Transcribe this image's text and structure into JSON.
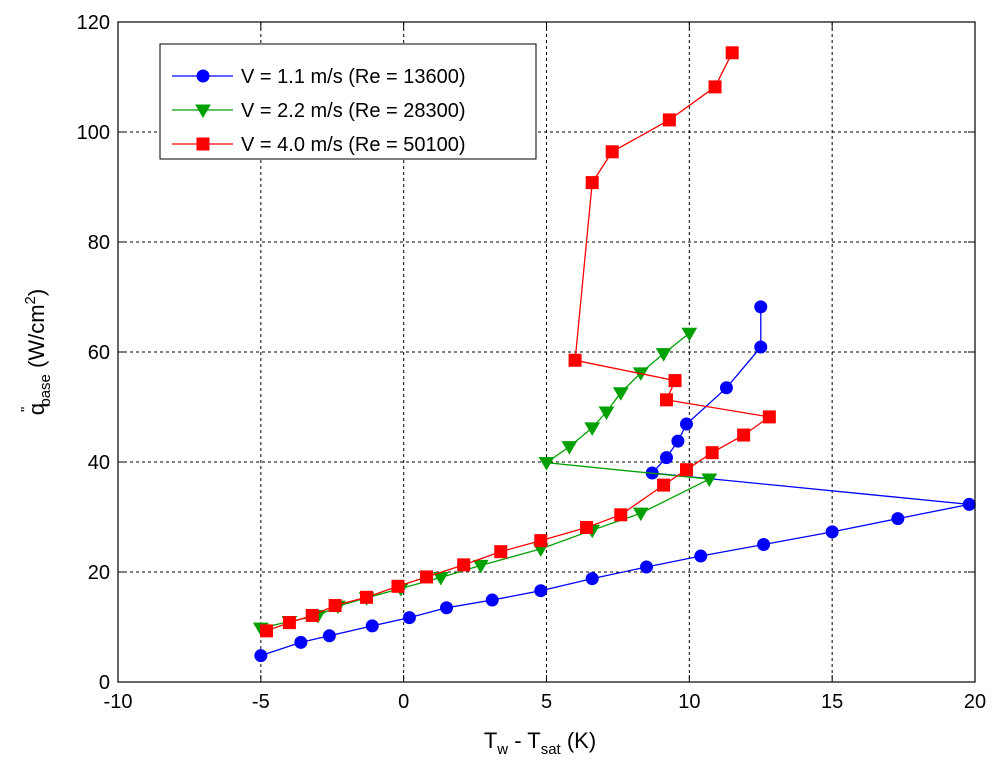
{
  "chart_data": {
    "type": "line",
    "xlabel": {
      "main": "T",
      "sub1": "w",
      "mid": " - T",
      "sub2": "sat",
      "unit": " (K)"
    },
    "ylabel": {
      "prefix": "q",
      "mark": "\"",
      "sub": "base",
      "unit_open": " (W/cm",
      "sup": "2",
      "unit_close": ")"
    },
    "xlim": [
      -10,
      20
    ],
    "ylim": [
      0,
      120
    ],
    "x_ticks": [
      -10,
      -5,
      0,
      5,
      10,
      15,
      20
    ],
    "y_ticks": [
      0,
      20,
      40,
      60,
      80,
      100,
      120
    ],
    "grid": true,
    "legend_position": "top-left",
    "series": [
      {
        "name": "V = 1.1 m/s (Re = 13600)",
        "color": "#0000ff",
        "marker": "circle",
        "points": [
          [
            -5.0,
            4.8
          ],
          [
            -3.6,
            7.2
          ],
          [
            -2.6,
            8.4
          ],
          [
            -1.1,
            10.2
          ],
          [
            0.2,
            11.7
          ],
          [
            1.5,
            13.5
          ],
          [
            3.1,
            14.9
          ],
          [
            4.8,
            16.6
          ],
          [
            6.6,
            18.8
          ],
          [
            8.5,
            20.9
          ],
          [
            10.4,
            22.9
          ],
          [
            12.6,
            25.0
          ],
          [
            15.0,
            27.3
          ],
          [
            17.3,
            29.7
          ],
          [
            19.8,
            32.3
          ],
          [
            8.7,
            38.0
          ],
          [
            9.2,
            40.8
          ],
          [
            9.6,
            43.8
          ],
          [
            9.9,
            46.9
          ],
          [
            11.3,
            53.5
          ],
          [
            12.5,
            60.9
          ],
          [
            12.5,
            68.2
          ]
        ]
      },
      {
        "name": "V = 2.2 m/s (Re = 28300)",
        "color": "#00a000",
        "marker": "triangle-down",
        "points": [
          [
            -5.0,
            9.8
          ],
          [
            -4.0,
            11.0
          ],
          [
            -3.0,
            12.1
          ],
          [
            -2.3,
            13.8
          ],
          [
            -1.3,
            15.3
          ],
          [
            -0.1,
            17.0
          ],
          [
            1.3,
            19.0
          ],
          [
            2.7,
            21.2
          ],
          [
            4.8,
            24.2
          ],
          [
            6.6,
            27.6
          ],
          [
            8.3,
            30.7
          ],
          [
            10.7,
            36.9
          ],
          [
            5.0,
            39.9
          ],
          [
            5.8,
            42.8
          ],
          [
            6.6,
            46.2
          ],
          [
            7.1,
            49.1
          ],
          [
            7.6,
            52.6
          ],
          [
            8.3,
            56.2
          ],
          [
            9.1,
            59.7
          ],
          [
            10.0,
            63.4
          ]
        ]
      },
      {
        "name": "V = 4.0 m/s (Re = 50100)",
        "color": "#ff0000",
        "marker": "square",
        "points": [
          [
            -4.8,
            9.3
          ],
          [
            -4.0,
            10.8
          ],
          [
            -3.2,
            12.1
          ],
          [
            -2.4,
            13.9
          ],
          [
            -1.3,
            15.4
          ],
          [
            -0.2,
            17.4
          ],
          [
            0.8,
            19.1
          ],
          [
            2.1,
            21.3
          ],
          [
            3.4,
            23.7
          ],
          [
            4.8,
            25.7
          ],
          [
            6.4,
            28.1
          ],
          [
            7.6,
            30.4
          ],
          [
            9.1,
            35.8
          ],
          [
            9.9,
            38.6
          ],
          [
            10.8,
            41.7
          ],
          [
            11.9,
            44.9
          ],
          [
            12.8,
            48.2
          ],
          [
            9.2,
            51.3
          ],
          [
            9.5,
            54.8
          ],
          [
            6.0,
            58.5
          ],
          [
            6.6,
            90.8
          ],
          [
            7.3,
            96.4
          ],
          [
            9.3,
            102.2
          ],
          [
            10.9,
            108.2
          ],
          [
            11.5,
            114.4
          ]
        ]
      }
    ]
  }
}
